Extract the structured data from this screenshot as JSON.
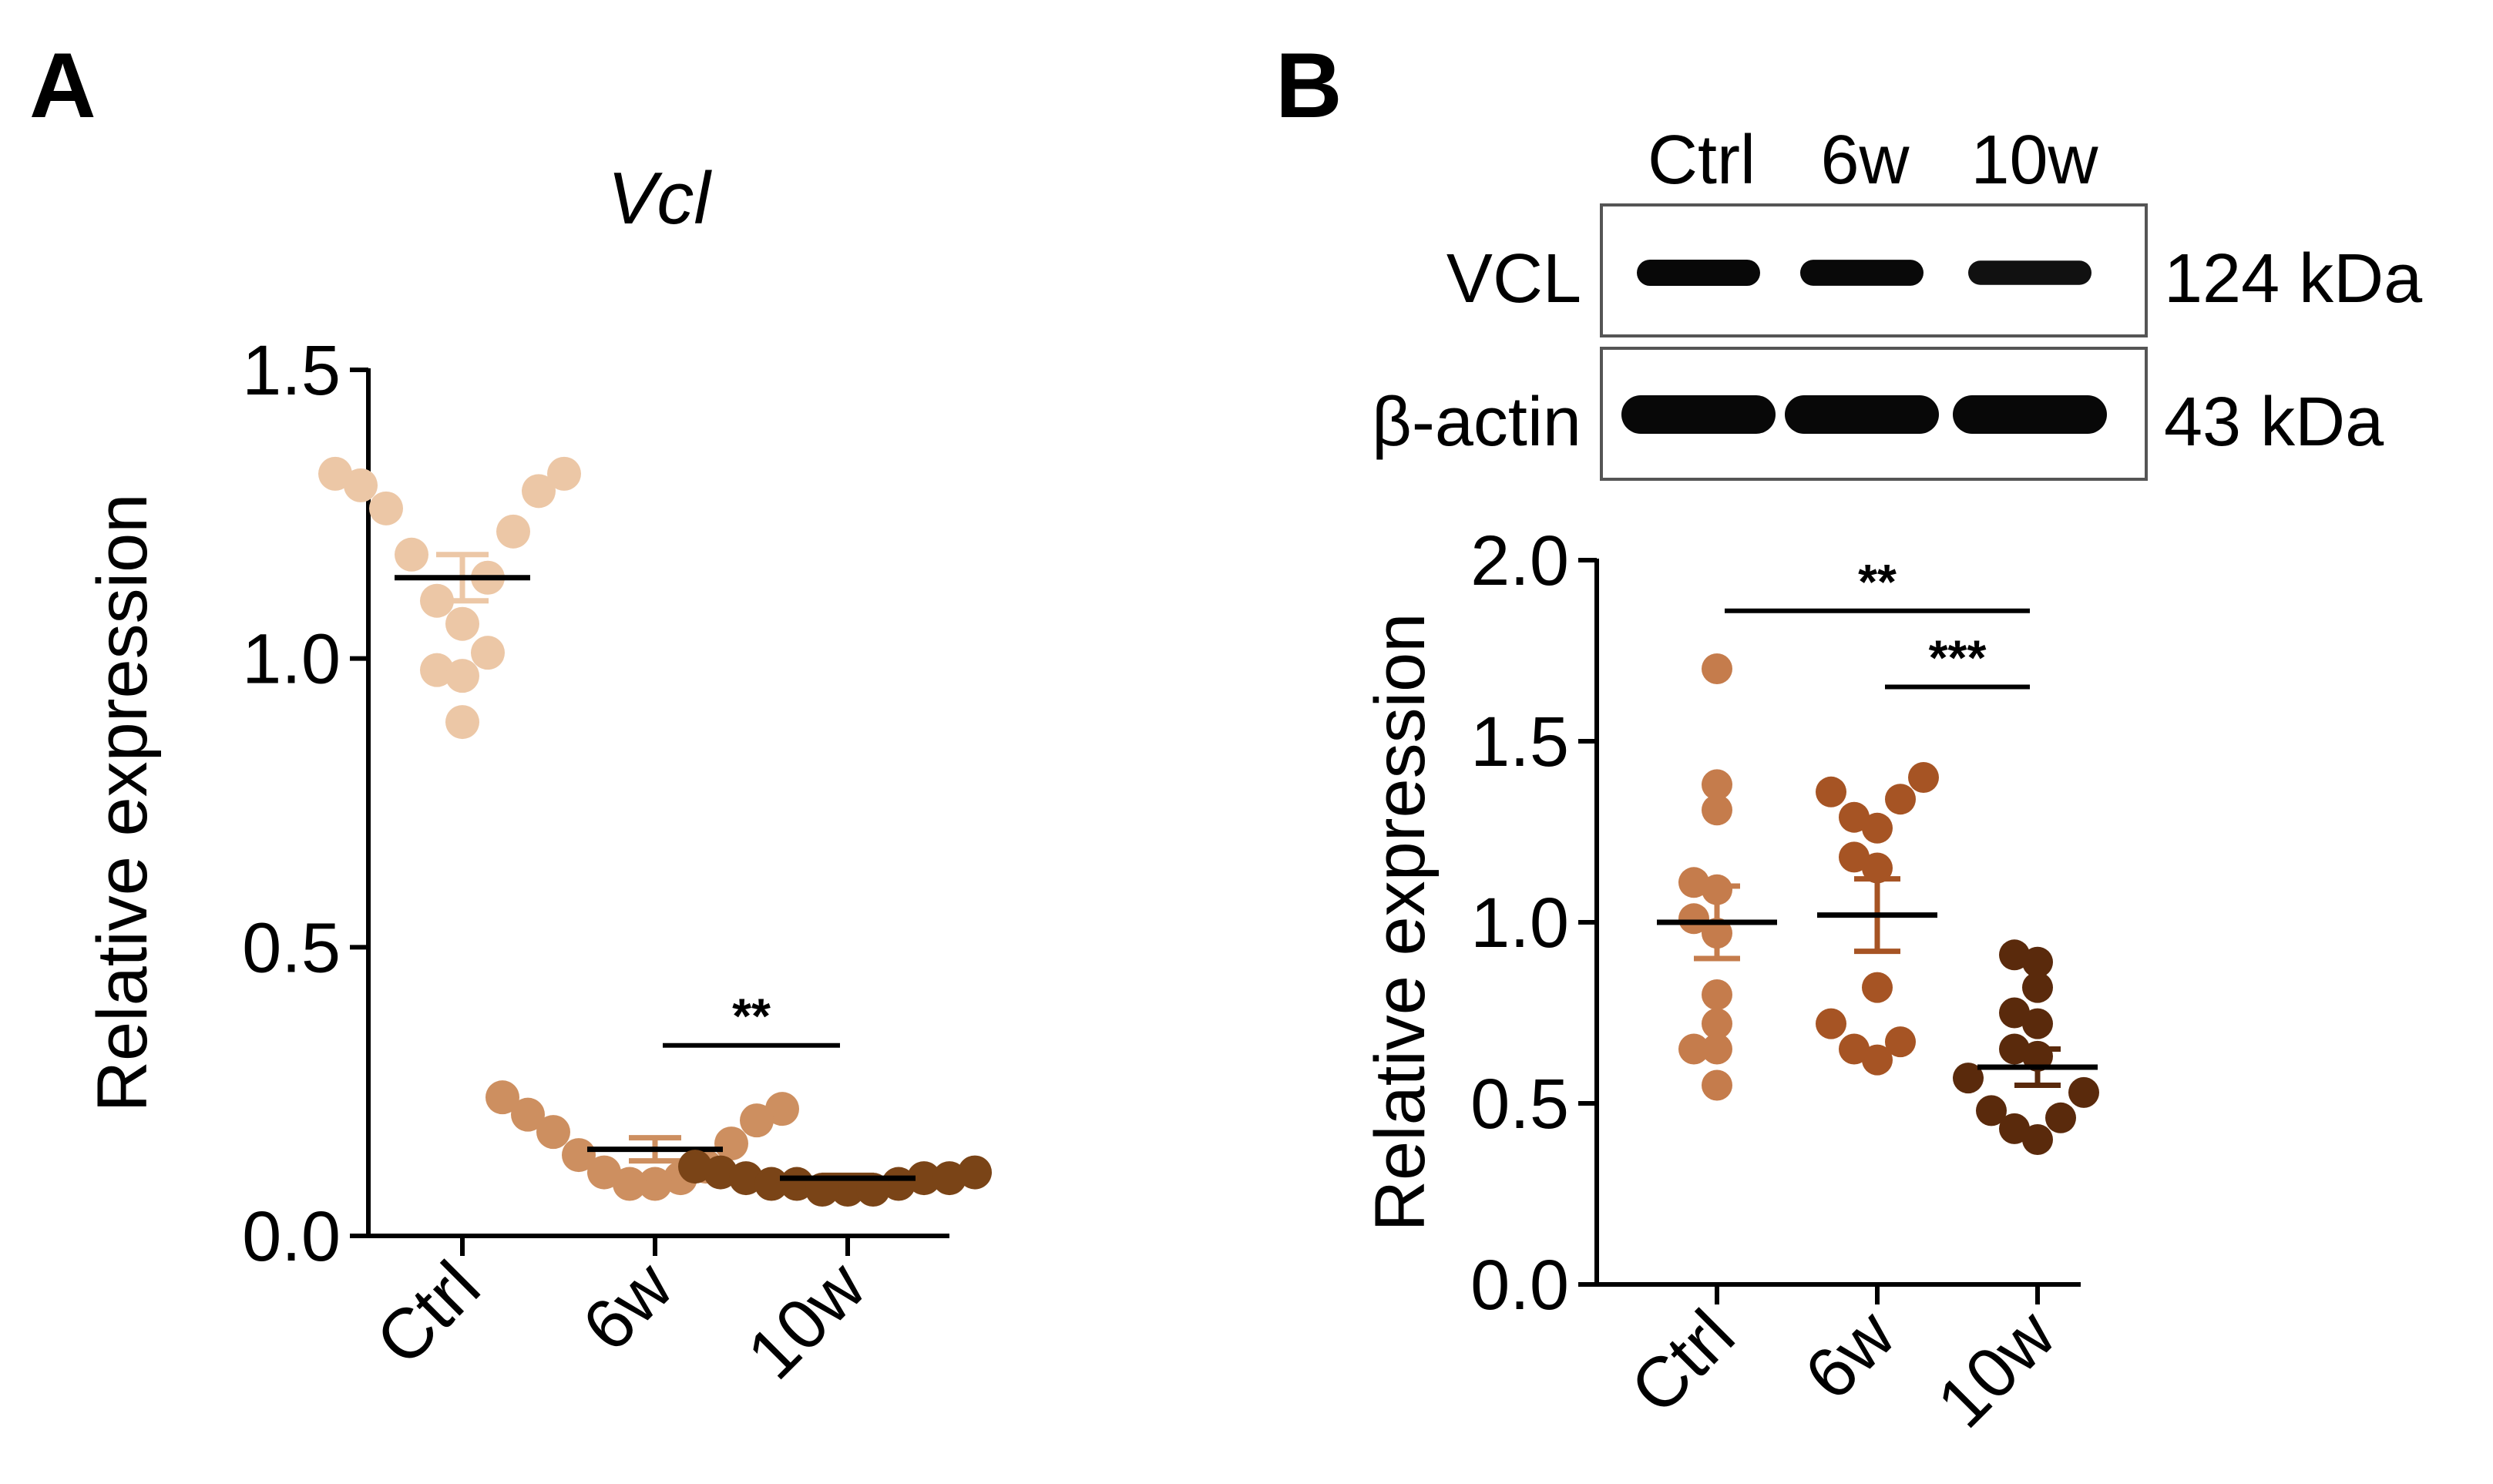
{
  "panels": {
    "a": "A",
    "b": "B"
  },
  "western_blot": {
    "lanes": [
      "Ctrl",
      "6w",
      "10w"
    ],
    "rows": [
      {
        "protein": "VCL",
        "size": "124 kDa",
        "intensities": [
          1.0,
          0.97,
          0.78
        ]
      },
      {
        "protein": "β-actin",
        "size": "43 kDa",
        "intensities": [
          1.0,
          1.0,
          1.0
        ]
      }
    ]
  },
  "chart_data": [
    {
      "type": "scatter",
      "panel": "A",
      "title": "Vcl",
      "xlabel": "",
      "ylabel": "Relative expression",
      "ylim": [
        0,
        1.5
      ],
      "yticks": [
        0.0,
        0.5,
        1.0,
        1.5
      ],
      "ytick_labels": [
        "0.0",
        "0.5",
        "1.0",
        "1.5"
      ],
      "categories": [
        "Ctrl",
        "6w",
        "10w"
      ],
      "colors": [
        "#ecc7a6",
        "#cd8f60",
        "#7a4417"
      ],
      "series": [
        {
          "name": "Ctrl",
          "mean": 1.14,
          "sem": 0.04,
          "values": [
            1.32,
            1.32,
            1.3,
            1.29,
            1.26,
            1.22,
            1.18,
            1.14,
            1.1,
            1.06,
            1.01,
            0.98,
            0.97,
            0.89
          ]
        },
        {
          "name": "6w",
          "mean": 0.15,
          "sem": 0.02,
          "values": [
            0.24,
            0.22,
            0.21,
            0.2,
            0.18,
            0.16,
            0.14,
            0.12,
            0.11,
            0.1,
            0.09,
            0.09
          ]
        },
        {
          "name": "10w",
          "mean": 0.1,
          "sem": 0.005,
          "values": [
            0.12,
            0.11,
            0.11,
            0.1,
            0.1,
            0.1,
            0.09,
            0.09,
            0.09,
            0.08,
            0.08,
            0.08
          ]
        }
      ],
      "significance": [
        {
          "from": 1,
          "to": 2,
          "label": "**",
          "y": 0.33
        }
      ]
    },
    {
      "type": "scatter",
      "panel": "B",
      "title": "",
      "xlabel": "",
      "ylabel": "Relative expression",
      "ylim": [
        0,
        2.0
      ],
      "yticks": [
        0.0,
        0.5,
        1.0,
        1.5,
        2.0
      ],
      "ytick_labels": [
        "0.0",
        "0.5",
        "1.0",
        "1.5",
        "2.0"
      ],
      "categories": [
        "Ctrl",
        "6w",
        "10w"
      ],
      "colors": [
        "#c57c4c",
        "#a65424",
        "#5a2a0c"
      ],
      "series": [
        {
          "name": "Ctrl",
          "mean": 1.0,
          "sem": 0.1,
          "values": [
            1.7,
            1.38,
            1.31,
            1.11,
            1.09,
            1.01,
            0.97,
            0.8,
            0.72,
            0.65,
            0.65,
            0.55
          ]
        },
        {
          "name": "6w",
          "mean": 1.02,
          "sem": 0.1,
          "values": [
            1.4,
            1.36,
            1.34,
            1.29,
            1.26,
            1.18,
            1.15,
            0.82,
            0.72,
            0.67,
            0.65,
            0.62
          ]
        },
        {
          "name": "10w",
          "mean": 0.6,
          "sem": 0.05,
          "values": [
            0.91,
            0.89,
            0.82,
            0.75,
            0.72,
            0.65,
            0.63,
            0.57,
            0.53,
            0.48,
            0.46,
            0.43,
            0.4
          ]
        }
      ],
      "significance": [
        {
          "from": 0,
          "to": 2,
          "label": "**",
          "y": 1.86
        },
        {
          "from": 1,
          "to": 2,
          "label": "***",
          "y": 1.65
        }
      ]
    }
  ]
}
